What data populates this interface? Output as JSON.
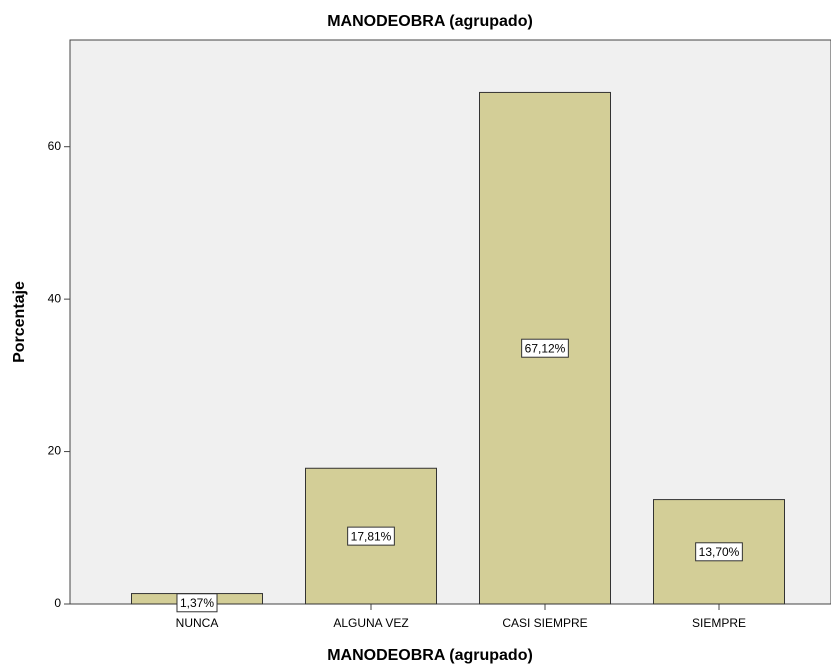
{
  "chart_data": {
    "type": "bar",
    "title": "MANODEOBRA (agrupado)",
    "x_label": "MANODEOBRA (agrupado)",
    "y_label": "Porcentaje",
    "categories": [
      "NUNCA",
      "ALGUNA VEZ",
      "CASI SIEMPRE",
      "SIEMPRE"
    ],
    "values": [
      1.37,
      17.81,
      67.12,
      13.7
    ],
    "value_labels": [
      "1,37%",
      "17,81%",
      "67,12%",
      "13,70%"
    ],
    "color": "#d3ce97",
    "ylim": [
      0,
      74
    ],
    "yticks": [
      0,
      20,
      40,
      60
    ],
    "grid": false
  }
}
